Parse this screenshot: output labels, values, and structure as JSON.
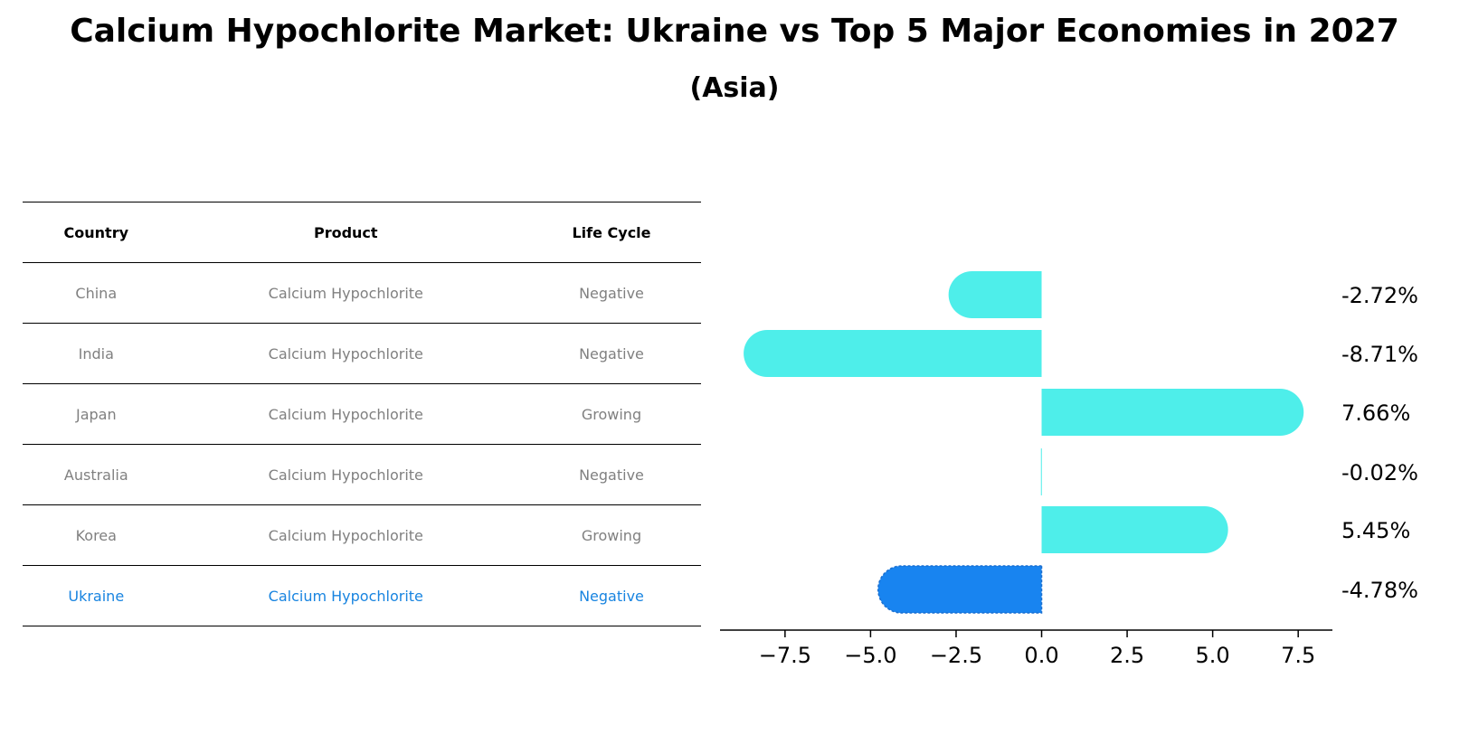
{
  "title": "Calcium Hypochlorite Market: Ukraine vs Top 5 Major Economies in 2027",
  "subtitle": "(Asia)",
  "table": {
    "headers": [
      "Country",
      "Product",
      "Life Cycle"
    ],
    "rows": [
      {
        "country": "China",
        "product": "Calcium Hypochlorite",
        "life_cycle": "Negative"
      },
      {
        "country": "India",
        "product": "Calcium Hypochlorite",
        "life_cycle": "Negative"
      },
      {
        "country": "Japan",
        "product": "Calcium Hypochlorite",
        "life_cycle": "Growing"
      },
      {
        "country": "Australia",
        "product": "Calcium Hypochlorite",
        "life_cycle": "Negative"
      },
      {
        "country": "Korea",
        "product": "Calcium Hypochlorite",
        "life_cycle": "Growing"
      },
      {
        "country": "Ukraine",
        "product": "Calcium Hypochlorite",
        "life_cycle": "Negative"
      }
    ]
  },
  "chart_data": {
    "type": "bar",
    "orientation": "horizontal",
    "categories": [
      "China",
      "India",
      "Japan",
      "Australia",
      "Korea",
      "Ukraine"
    ],
    "values": [
      -2.72,
      -8.71,
      7.66,
      -0.02,
      5.45,
      -4.78
    ],
    "value_labels": [
      "-2.72%",
      "-8.71%",
      "7.66%",
      "-0.02%",
      "5.45%",
      "-4.78%"
    ],
    "xticks": [
      -7.5,
      -5.0,
      -2.5,
      0.0,
      2.5,
      5.0,
      7.5
    ],
    "xtick_labels": [
      "−7.5",
      "−5.0",
      "−2.5",
      "0.0",
      "2.5",
      "5.0",
      "7.5"
    ],
    "xlim": [
      -9.4,
      8.5
    ],
    "grid": false,
    "colors": {
      "default": "#4eeeea",
      "highlight": "#1884f0"
    },
    "highlight_index": 5
  }
}
